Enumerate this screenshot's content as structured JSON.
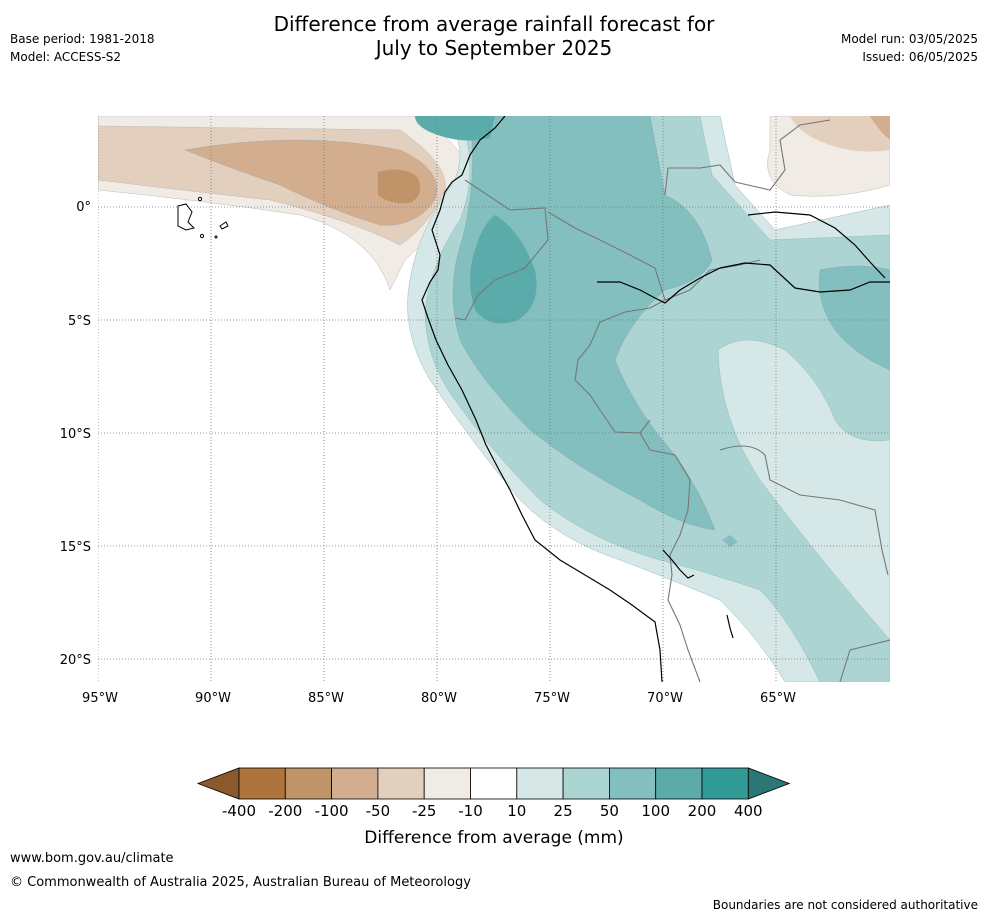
{
  "title_line1": "Difference from average rainfall forecast for",
  "title_line2": "July to September 2025",
  "base_period": "Base period: 1981-2018",
  "model": "Model: ACCESS-S2",
  "model_run": "Model run: 03/05/2025",
  "issued": "Issued: 06/05/2025",
  "map": {
    "lon_labels": [
      "95°W",
      "90°W",
      "85°W",
      "80°W",
      "75°W",
      "70°W",
      "65°W"
    ],
    "lat_labels": [
      "0°",
      "5°S",
      "10°S",
      "15°S",
      "20°S"
    ]
  },
  "colorbar": {
    "title": "Difference from average (mm)",
    "tick_labels": [
      "-400",
      "-200",
      "-100",
      "-50",
      "-25",
      "-10",
      "10",
      "25",
      "50",
      "100",
      "200",
      "400"
    ],
    "colors": [
      "#8c5a2a",
      "#ad743b",
      "#c09469",
      "#d2ae8f",
      "#e3cfbe",
      "#f1ebe6",
      "#ffffff",
      "#d5e8e7",
      "#acd4d3",
      "#83bfbe",
      "#5aabaa",
      "#319a97",
      "#2a7774"
    ]
  },
  "footer": {
    "url": "www.bom.gov.au/climate",
    "copyright": "© Commonwealth of Australia 2025, Australian Bureau of Meteorology",
    "note": "Boundaries are not considered authoritative"
  }
}
